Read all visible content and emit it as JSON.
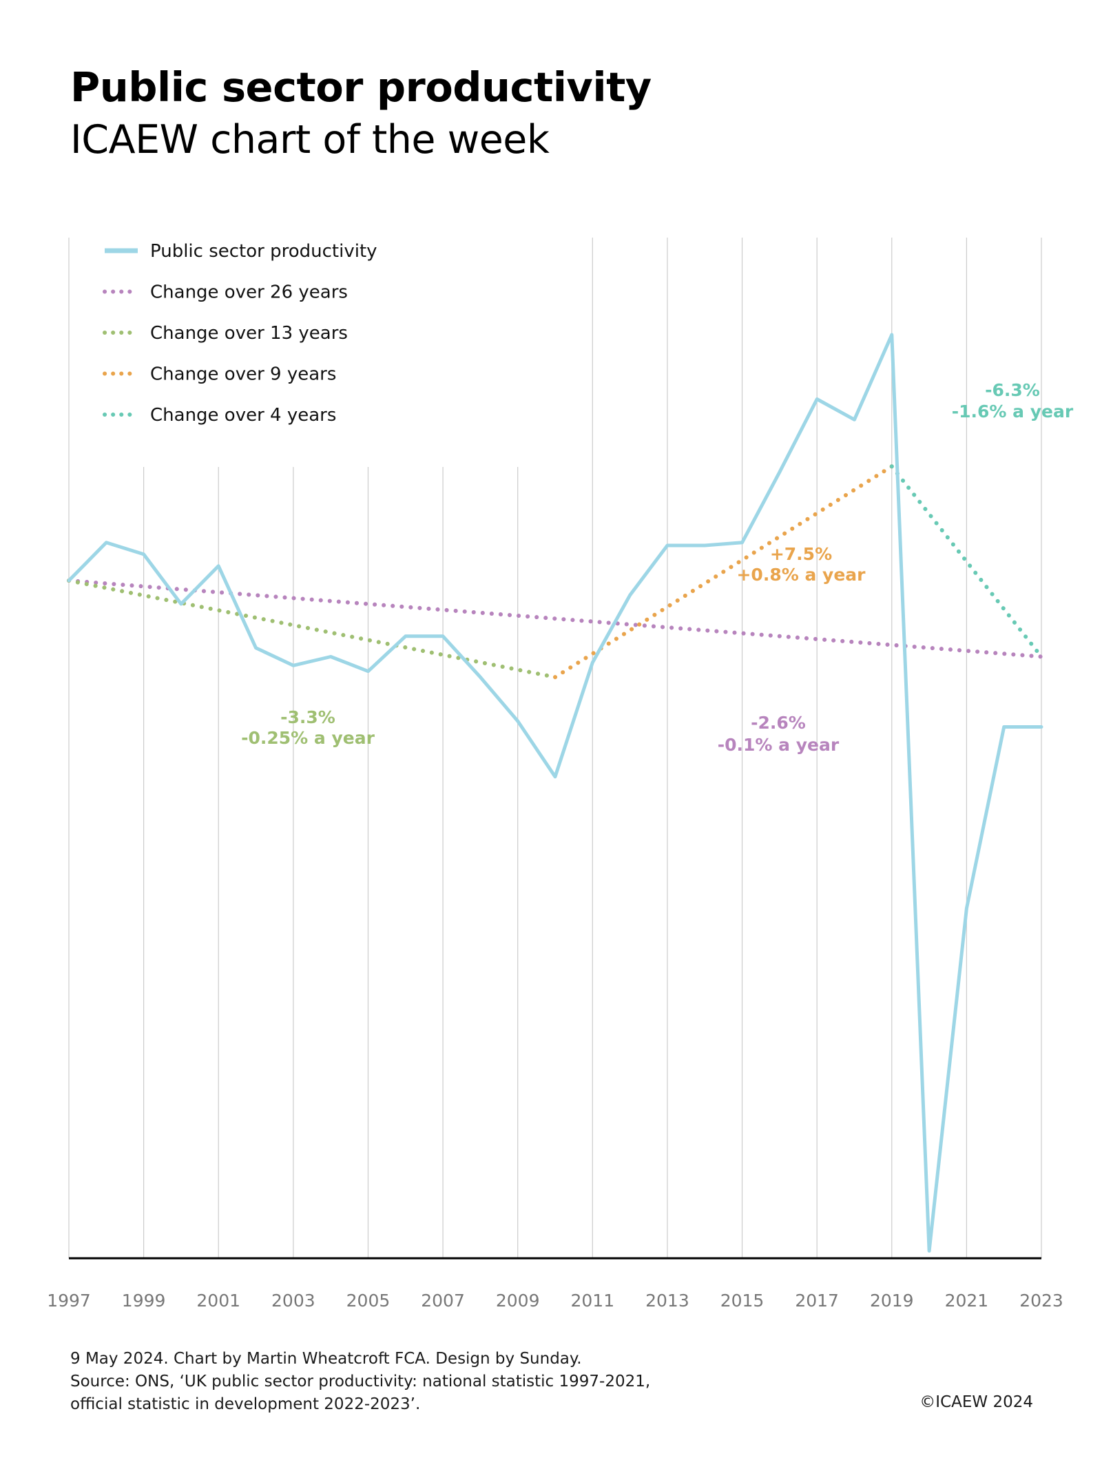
{
  "title": "Public sector productivity",
  "subtitle": "ICAEW chart of the week",
  "footer": {
    "line1": "9 May 2024.   Chart by Martin Wheatcroft FCA. Design by Sunday.",
    "line2": "Source: ONS, ‘UK public sector productivity: national statistic 1997-2021,",
    "line3": "official statistic in development 2022-2023’.",
    "copyright": "©ICAEW 2024"
  },
  "colors": {
    "productivity": "#9dd6e6",
    "change26": "#b784bd",
    "change13": "#9fbf72",
    "change9": "#e9a44c",
    "change4": "#67c9b4",
    "grid": "#cccccc",
    "axis": "#000000",
    "tick_text": "#777777"
  },
  "chart_data": {
    "type": "line",
    "title": "Public sector productivity",
    "xlabel": "",
    "ylabel": "",
    "xlim": [
      1997,
      2023
    ],
    "ylim": [
      76,
      110
    ],
    "grid": true,
    "x_ticks": [
      1997,
      1999,
      2001,
      2003,
      2005,
      2007,
      2009,
      2011,
      2013,
      2015,
      2017,
      2019,
      2021,
      2023
    ],
    "legend": {
      "placement": "top-left",
      "entries": [
        {
          "key": "productivity",
          "label": "Public sector productivity",
          "style": "solid"
        },
        {
          "key": "change26",
          "label": "Change over 26 years",
          "style": "dotted"
        },
        {
          "key": "change13",
          "label": "Change over 13 years",
          "style": "dotted"
        },
        {
          "key": "change9",
          "label": "Change over 9 years",
          "style": "dotted"
        },
        {
          "key": "change4",
          "label": "Change over 4 years",
          "style": "dotted"
        }
      ]
    },
    "series": [
      {
        "name": "Public sector productivity",
        "key": "productivity",
        "x": [
          1997,
          1998,
          1999,
          2000,
          2001,
          2002,
          2003,
          2004,
          2005,
          2006,
          2007,
          2008,
          2009,
          2010,
          2011,
          2012,
          2013,
          2014,
          2015,
          2016,
          2017,
          2018,
          2019,
          2020,
          2021,
          2022,
          2023
        ],
        "values": [
          100,
          101.3,
          100.9,
          99.2,
          100.5,
          97.7,
          97.1,
          97.4,
          96.9,
          98.1,
          98.1,
          96.7,
          95.2,
          93.3,
          97.2,
          99.5,
          101.2,
          101.2,
          101.3,
          103.7,
          106.2,
          105.5,
          108.4,
          77.1,
          88.8,
          95.0,
          95.0
        ]
      },
      {
        "name": "Change over 26 years",
        "key": "change26",
        "x": [
          1997,
          2023
        ],
        "values": [
          100,
          97.4
        ]
      },
      {
        "name": "Change over 13 years",
        "key": "change13",
        "x": [
          1997,
          2010
        ],
        "values": [
          100,
          96.7
        ]
      },
      {
        "name": "Change over 9 years",
        "key": "change9",
        "x": [
          2010,
          2019
        ],
        "values": [
          96.7,
          103.9
        ]
      },
      {
        "name": "Change over 4 years",
        "key": "change4",
        "x": [
          2019,
          2023
        ],
        "values": [
          103.9,
          97.4
        ]
      }
    ],
    "annotations": [
      {
        "key": "change13",
        "line1": "-3.3%",
        "line2": "-0.25% a year"
      },
      {
        "key": "change26",
        "line1": "-2.6%",
        "line2": "-0.1% a year"
      },
      {
        "key": "change9",
        "line1": "+7.5%",
        "line2": "+0.8% a year"
      },
      {
        "key": "change4",
        "line1": "-6.3%",
        "line2": "-1.6% a year"
      }
    ]
  }
}
